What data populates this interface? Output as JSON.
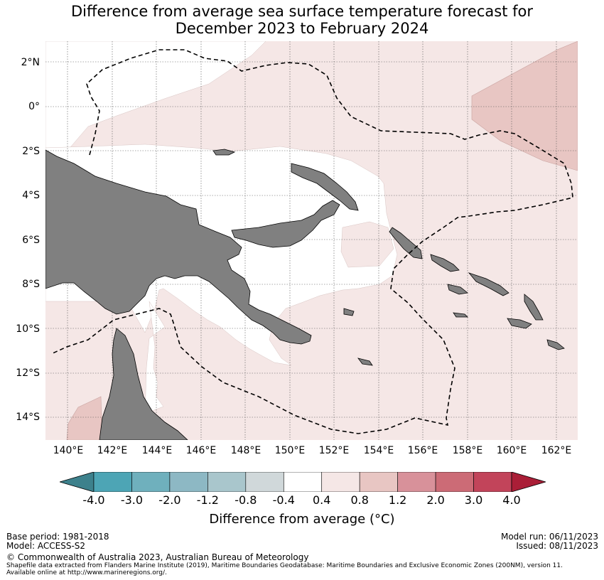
{
  "title_line1": "Difference from average sea surface temperature forecast for",
  "title_line2": "December 2023 to February 2024",
  "lat_labels": [
    "2°N",
    "0°",
    "2°S",
    "4°S",
    "6°S",
    "8°S",
    "10°S",
    "12°S",
    "14°S"
  ],
  "lon_labels": [
    "140°E",
    "142°E",
    "144°E",
    "146°E",
    "148°E",
    "150°E",
    "152°E",
    "154°E",
    "156°E",
    "158°E",
    "160°E",
    "162°E"
  ],
  "colorbar": {
    "ticks": [
      "-4.0",
      "-3.0",
      "-2.0",
      "-1.2",
      "-0.8",
      "-0.4",
      "0.4",
      "0.8",
      "1.2",
      "2.0",
      "3.0",
      "4.0"
    ],
    "colors": [
      "#3d818c",
      "#4da5b5",
      "#6fb0bd",
      "#8db8c4",
      "#a9c6cc",
      "#d0d8da",
      "#ffffff",
      "#f5e7e6",
      "#e8c6c3",
      "#d8919a",
      "#cc6b76",
      "#c2445a",
      "#aa1e37"
    ],
    "label": "Difference from average (°C)"
  },
  "legend_values_shown": {
    "land": "#808080",
    "sea_near_average": "#ffffff",
    "sea_slightly_warm": "#f5e7e6",
    "sea_warm": "#e8c6c3"
  },
  "footer": {
    "base_period": "Base period: 1981-2018",
    "model": "Model: ACCESS-S2",
    "model_run": "Model run: 06/11/2023",
    "issued": "Issued: 08/11/2023",
    "copyright": "© Commonwealth of Australia 2023, Australian Bureau of Meteorology",
    "shapefile_line1": "Shapefile data extracted from Flanders Marine Institute (2019), Maritime Boundaries Geodatabase: Maritime Boundaries and Exclusive Economic Zones (200NM), version 11.",
    "shapefile_line2": "Available online at http://www.marineregions.org/."
  }
}
